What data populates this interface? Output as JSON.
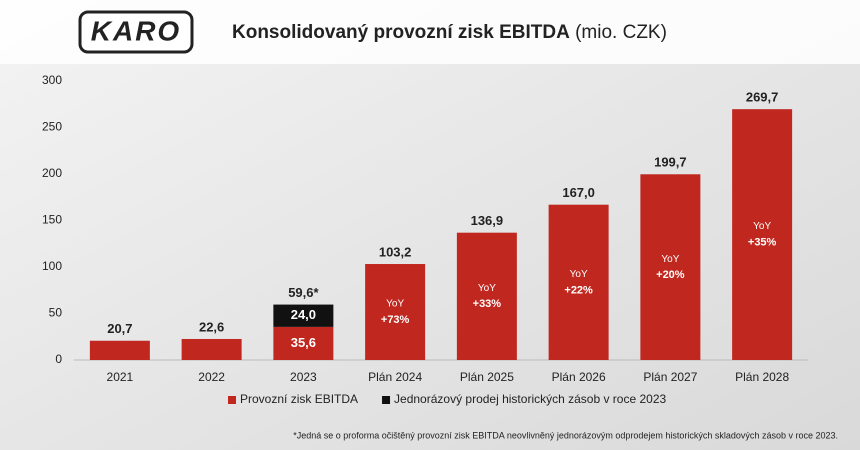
{
  "logo": "KARO",
  "chart_data": {
    "type": "stacked-bar",
    "title": "Konsolidovaný provozní zisk EBITDA",
    "subtitle": "(mio. CZK)",
    "categories": [
      "2021",
      "2022",
      "2023",
      "Plán 2024",
      "Plán 2025",
      "Plán 2026",
      "Plán 2027",
      "Plán 2028"
    ],
    "series": [
      {
        "name": "Provozní zisk EBITDA",
        "color": "#c0281f",
        "values": [
          20.7,
          22.6,
          35.6,
          103.2,
          136.9,
          167.0,
          199.7,
          269.7
        ],
        "value_labels": [
          "20,7",
          "22,6",
          "35,6",
          "103,2",
          "136,9",
          "167,0",
          "199,7",
          "269,7"
        ]
      },
      {
        "name": "Jednorázový prodej historických zásob v roce 2023",
        "color": "#111111",
        "values": [
          null,
          null,
          24.0,
          null,
          null,
          null,
          null,
          null
        ],
        "value_labels": [
          null,
          null,
          "24,0",
          null,
          null,
          null,
          null,
          null
        ]
      }
    ],
    "totals": [
      null,
      null,
      59.6,
      null,
      null,
      null,
      null,
      null
    ],
    "total_labels": [
      null,
      null,
      "59,6*",
      null,
      null,
      null,
      null,
      null
    ],
    "yoy_prefix": "YoY",
    "yoy": [
      null,
      null,
      null,
      73,
      33,
      22,
      20,
      35
    ],
    "yoy_labels": [
      null,
      null,
      null,
      "+73%",
      "+33%",
      "+22%",
      "+20%",
      "+35%"
    ],
    "ylim": [
      0,
      300
    ],
    "yticks": [
      0,
      50,
      100,
      150,
      200,
      250,
      300
    ],
    "grid": false,
    "footnote": "*Jedná se o proforma očištěný provozní zisk EBITDA neovlivněný jednorázovým odprodejem historických skladových zásob v roce 2023."
  }
}
